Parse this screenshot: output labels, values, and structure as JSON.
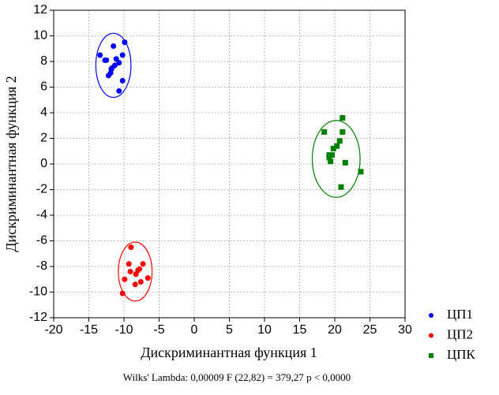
{
  "chart_data": {
    "type": "scatter",
    "xlabel": "Дискриминантная функция 1",
    "ylabel": "Дискриминантная функция   2",
    "note": "Wilks' Lambda: 0,00009  F (22,82) = 379,27 p < 0,0000",
    "xlim": [
      -20,
      30
    ],
    "ylim": [
      -12,
      12
    ],
    "xticks": [
      -20,
      -15,
      -10,
      -5,
      0,
      5,
      10,
      15,
      20,
      25,
      30
    ],
    "yticks": [
      -12,
      -10,
      -8,
      -6,
      -4,
      -2,
      0,
      2,
      4,
      6,
      8,
      10,
      12
    ],
    "grid": true,
    "legend": "right-bottom",
    "series": [
      {
        "name": "ЦП1",
        "color": "#0000ff",
        "marker": "circle",
        "x": [
          -13.4,
          -12.7,
          -12.5,
          -11.5,
          -9.9,
          -11.1,
          -10.7,
          -10.2,
          -12.2,
          -11.8,
          -11.9,
          -11.7,
          -11.3,
          -10.2,
          -10.7
        ],
        "values": [
          8.5,
          8.1,
          8.1,
          9.2,
          9.5,
          8.2,
          7.9,
          8.5,
          6.9,
          7.4,
          7.1,
          7.5,
          7.7,
          6.5,
          5.7
        ],
        "ellipse": {
          "cx": -11.5,
          "cy": 7.7,
          "rx": 2.5,
          "ry": 2.5
        }
      },
      {
        "name": "ЦП2",
        "color": "#ff0000",
        "marker": "circle",
        "x": [
          -9.0,
          -9.3,
          -7.3,
          -9.1,
          -8.3,
          -8.0,
          -7.8,
          -6.6,
          -7.6,
          -8.4,
          -9.9,
          -10.2
        ],
        "values": [
          -6.5,
          -7.8,
          -7.8,
          -8.4,
          -8.6,
          -8.3,
          -8.2,
          -8.9,
          -9.2,
          -9.4,
          -9.0,
          -10.1
        ],
        "ellipse": {
          "cx": -8.4,
          "cy": -8.4,
          "rx": 2.4,
          "ry": 2.3
        }
      },
      {
        "name": "ЦПК",
        "color": "#008000",
        "marker": "square",
        "x": [
          18.5,
          21.1,
          21.1,
          20.7,
          20.3,
          19.8,
          19.2,
          19.6,
          19.2,
          19.4,
          21.5,
          23.7,
          20.9
        ],
        "values": [
          2.5,
          3.6,
          2.5,
          1.8,
          1.4,
          1.2,
          0.7,
          0.7,
          0.5,
          0.2,
          0.1,
          -0.6,
          -1.8
        ],
        "ellipse": {
          "cx": 20.2,
          "cy": 0.4,
          "rx": 3.4,
          "ry": 3.0
        }
      }
    ]
  }
}
